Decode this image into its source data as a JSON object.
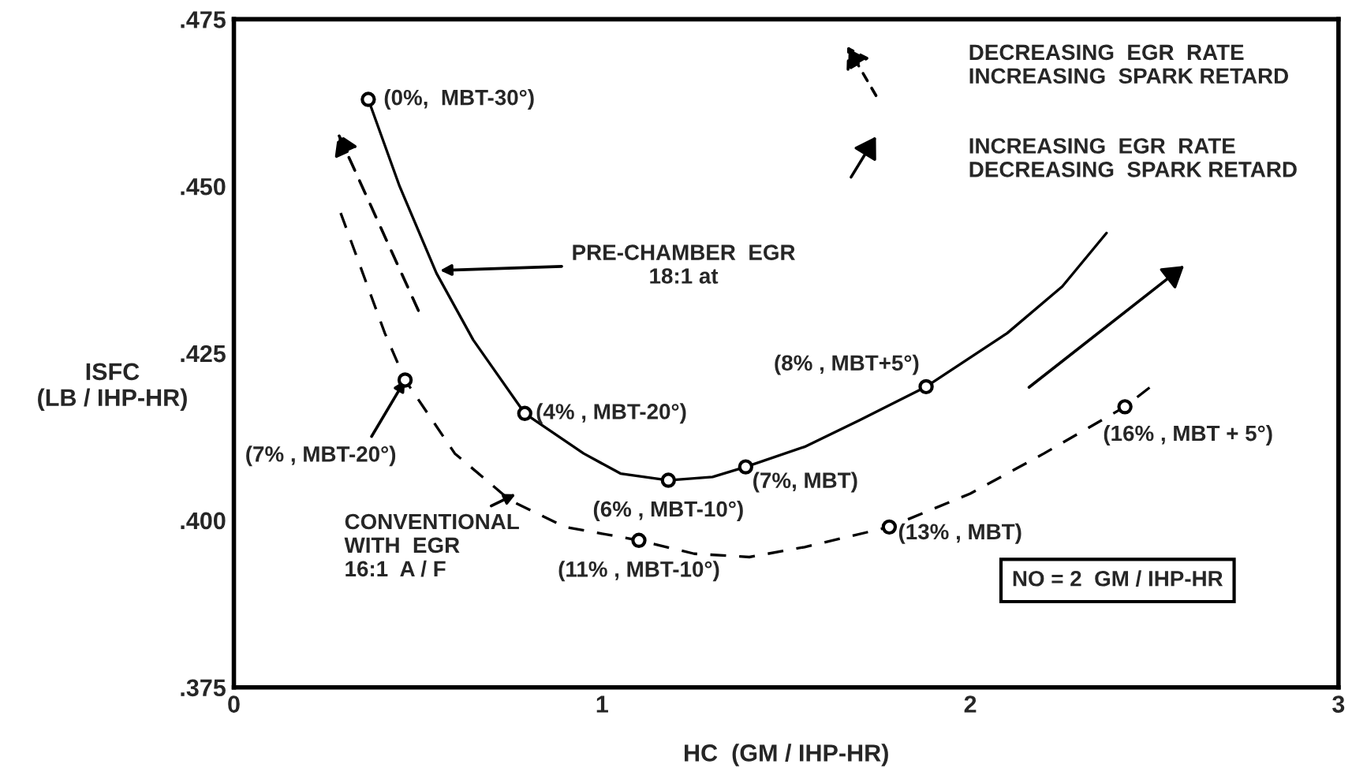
{
  "chart_data": {
    "type": "line",
    "xlabel": "HC  (GM / IHP-HR)",
    "ylabel": "ISFC\n(LB / IHP-HR)",
    "xlim": [
      0,
      3
    ],
    "xticks": [
      0,
      1,
      2,
      3
    ],
    "ylim": [
      0.375,
      0.475
    ],
    "yticks": [
      {
        "value": 0.375,
        "label": ".375"
      },
      {
        "value": 0.4,
        "label": ".400"
      },
      {
        "value": 0.425,
        "label": ".425"
      },
      {
        "value": 0.45,
        "label": ".450"
      },
      {
        "value": 0.475,
        "label": ".475"
      }
    ],
    "grid": false,
    "series": [
      {
        "color": "#000000",
        "line_style": "solid",
        "marker": "none",
        "x": [
          0.365,
          0.45,
          0.55,
          0.65,
          0.79,
          0.95,
          1.05,
          1.18,
          1.3,
          1.39,
          1.55,
          1.7,
          1.88,
          2.1,
          2.25,
          2.37
        ],
        "values": [
          0.463,
          0.45,
          0.437,
          0.427,
          0.416,
          0.41,
          0.407,
          0.406,
          0.4065,
          0.408,
          0.411,
          0.415,
          0.42,
          0.428,
          0.435,
          0.443
        ]
      },
      {
        "color": "#000000",
        "line_style": "dashed",
        "marker": "none",
        "x": [
          0.29,
          0.35,
          0.41,
          0.465,
          0.6,
          0.75,
          0.9,
          1.1,
          1.25,
          1.4,
          1.55,
          1.78,
          2.0,
          2.2,
          2.42,
          2.49
        ],
        "values": [
          0.446,
          0.437,
          0.428,
          0.421,
          0.41,
          0.403,
          0.399,
          0.397,
          0.395,
          0.3945,
          0.396,
          0.399,
          0.404,
          0.41,
          0.417,
          0.42
        ]
      },
      {
        "type": "scatter",
        "color": "#000000",
        "marker": "circle",
        "x": [
          0.365,
          0.79,
          1.18,
          1.39,
          1.88,
          0.465,
          1.1,
          1.78,
          2.42
        ],
        "values": [
          0.463,
          0.416,
          0.406,
          0.408,
          0.42,
          0.421,
          0.397,
          0.399,
          0.417
        ]
      }
    ],
    "annotations": [
      {
        "text": "(0%,  MBT-30°)",
        "x": 0.365,
        "y": 0.463
      },
      {
        "text": "(4% , MBT-20°)",
        "x": 0.79,
        "y": 0.416
      },
      {
        "text": "(6% , MBT-10°)",
        "x": 1.18,
        "y": 0.406
      },
      {
        "text": "(7%, MBT)",
        "x": 1.39,
        "y": 0.408
      },
      {
        "text": "(8% , MBT+5°)",
        "x": 1.88,
        "y": 0.42
      },
      {
        "text": "(7% , MBT-20°)",
        "x": 0.465,
        "y": 0.421
      },
      {
        "text": "(11% , MBT-10°)",
        "x": 1.1,
        "y": 0.397
      },
      {
        "text": "(13% , MBT)",
        "x": 1.78,
        "y": 0.399
      },
      {
        "text": "(16% , MBT + 5°)",
        "x": 2.42,
        "y": 0.417
      },
      {
        "text": "PRE-CHAMBER  EGR\n18:1 at",
        "x": 0.56,
        "y": 0.4374
      },
      "CONVENTIONAL\nWITH  EGR\n16:1  A / F",
      "DECREASING  EGR  RATE\nINCREASING  SPARK RETARD",
      "INCREASING  EGR  RATE\nDECREASING  SPARK RETARD",
      "NO = 2  GM / IHP-HR"
    ]
  }
}
